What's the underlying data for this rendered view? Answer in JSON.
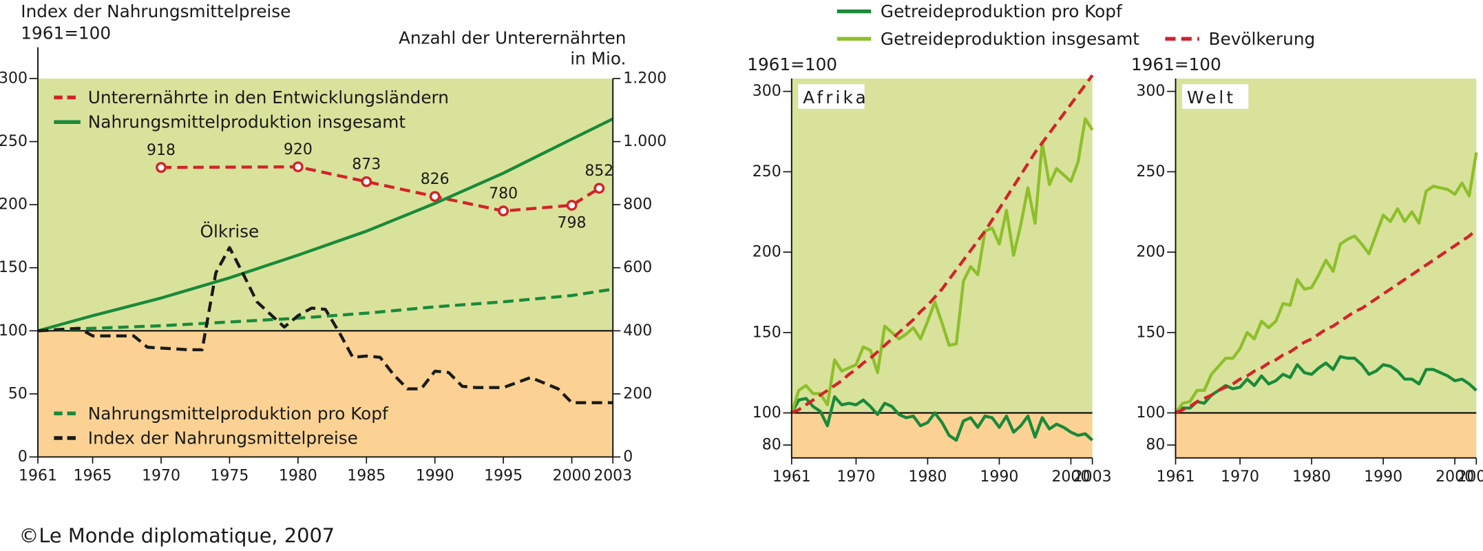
{
  "source": "©Le Monde diplomatique, 2007",
  "chart_data": [
    {
      "type": "line",
      "ylabel": [
        "Index der Nahrungsmittelpreise",
        "1961=100"
      ],
      "y2label": [
        "Anzahl der Unterernährten",
        "in Mio."
      ],
      "xlim": [
        1961,
        2003
      ],
      "xticks": [
        1961,
        1965,
        1970,
        1975,
        1980,
        1985,
        1990,
        1995,
        2000,
        2003
      ],
      "ylim": [
        0,
        300
      ],
      "yticks": [
        0,
        50,
        100,
        150,
        200,
        250,
        300
      ],
      "y2lim": [
        0,
        1200
      ],
      "y2ticks": [
        0,
        200,
        400,
        600,
        800,
        {
          "value": 1000,
          "label": "1.000"
        },
        {
          "value": 1200,
          "label": "1.200"
        }
      ],
      "baseline": 100,
      "annotations": [
        "Ölkrise"
      ],
      "series": [
        {
          "name": "Unterernährte in den Entwicklungsländern",
          "color": "#d2232a",
          "dashed": true,
          "markers": true,
          "axis": "y2",
          "legend": "upper left",
          "x": [
            1970,
            1980,
            1985,
            1990,
            1995,
            2000,
            2002
          ],
          "values": [
            918,
            920,
            873,
            826,
            780,
            798,
            852
          ]
        },
        {
          "name": "Nahrungsmittelproduktion insgesamt",
          "color": "#1a8a3a",
          "legend": "upper left",
          "x": [
            1961,
            1965,
            1970,
            1975,
            1980,
            1985,
            1990,
            1995,
            2000,
            2003
          ],
          "values": [
            100,
            112,
            126,
            142,
            160,
            179,
            201,
            225,
            252,
            268
          ]
        },
        {
          "name": "Nahrungsmittelproduktion pro Kopf",
          "color": "#1a8a3a",
          "dashed": true,
          "legend": "lower left",
          "x": [
            1961,
            1965,
            1970,
            1975,
            1980,
            1985,
            1990,
            1995,
            2000,
            2003
          ],
          "values": [
            100,
            102,
            104,
            107,
            110,
            114,
            119,
            123,
            128,
            133
          ]
        },
        {
          "name": "Index der Nahrungsmittelpreise",
          "color": "#1a1a1a",
          "dashed": true,
          "legend": "lower left",
          "x": [
            1961,
            1964,
            1965,
            1968,
            1969,
            1972,
            1973,
            1974,
            1975,
            1976,
            1977,
            1979,
            1980,
            1981,
            1982,
            1983,
            1984,
            1985,
            1986,
            1987,
            1988,
            1989,
            1990,
            1991,
            1992,
            1993,
            1994,
            1995,
            1997,
            1999,
            2000,
            2003
          ],
          "values": [
            100,
            102,
            96,
            96,
            87,
            85,
            85,
            146,
            166,
            145,
            123,
            103,
            112,
            118,
            117,
            99,
            79,
            80,
            79,
            65,
            54,
            54,
            68,
            67,
            56,
            55,
            55,
            55,
            63,
            54,
            43,
            43
          ]
        }
      ]
    },
    {
      "type": "line",
      "title": "Afrika",
      "ylabel": "1961=100",
      "legend": "top",
      "xlim": [
        1961,
        2003
      ],
      "xticks": [
        1961,
        1970,
        1980,
        1990,
        2000,
        2003
      ],
      "ylim": [
        72,
        308
      ],
      "yticks": [
        80,
        100,
        150,
        200,
        250,
        300
      ],
      "baseline": 100,
      "x": [
        1961,
        1962,
        1963,
        1964,
        1965,
        1966,
        1967,
        1968,
        1969,
        1970,
        1971,
        1972,
        1973,
        1974,
        1975,
        1976,
        1977,
        1978,
        1979,
        1980,
        1981,
        1982,
        1983,
        1984,
        1985,
        1986,
        1987,
        1988,
        1989,
        1990,
        1991,
        1992,
        1993,
        1994,
        1995,
        1996,
        1997,
        1998,
        1999,
        2000,
        2001,
        2002,
        2003
      ],
      "series": [
        {
          "name": "Getreideproduktion pro Kopf",
          "color": "#1a8a3a",
          "values": [
            100,
            108,
            109,
            104,
            101,
            92,
            110,
            105,
            106,
            105,
            108,
            104,
            99,
            106,
            104,
            99,
            97,
            98,
            92,
            94,
            100,
            94,
            86,
            83,
            95,
            97,
            91,
            98,
            97,
            91,
            98,
            88,
            92,
            98,
            85,
            97,
            90,
            93,
            91,
            88,
            86,
            87,
            83
          ]
        },
        {
          "name": "Getreideproduktion insgesamt",
          "color": "#8dbf2b",
          "values": [
            100,
            114,
            117,
            112,
            112,
            105,
            133,
            126,
            128,
            130,
            141,
            139,
            125,
            154,
            150,
            146,
            149,
            153,
            146,
            157,
            169,
            156,
            142,
            143,
            182,
            191,
            186,
            213,
            215,
            205,
            226,
            198,
            217,
            240,
            218,
            268,
            242,
            252,
            248,
            244,
            256,
            283,
            276
          ]
        },
        {
          "name": "Bevölkerung",
          "color": "#d2232a",
          "dashed": true,
          "values": [
            100,
            102,
            105,
            108,
            111,
            114,
            117,
            120,
            124,
            127,
            131,
            134,
            138,
            142,
            146,
            150,
            154,
            158,
            163,
            167,
            172,
            177,
            183,
            189,
            195,
            201,
            207,
            213,
            220,
            227,
            234,
            241,
            248,
            255,
            262,
            268,
            274,
            280,
            286,
            292,
            298,
            304,
            310
          ]
        }
      ]
    },
    {
      "type": "line",
      "title": "Welt",
      "ylabel": "1961=100",
      "xlim": [
        1961,
        2003
      ],
      "xticks": [
        1961,
        1970,
        1980,
        1990,
        2000,
        2003
      ],
      "ylim": [
        72,
        308
      ],
      "yticks": [
        80,
        100,
        150,
        200,
        250,
        300
      ],
      "baseline": 100,
      "x": [
        1961,
        1962,
        1963,
        1964,
        1965,
        1966,
        1967,
        1968,
        1969,
        1970,
        1971,
        1972,
        1973,
        1974,
        1975,
        1976,
        1977,
        1978,
        1979,
        1980,
        1981,
        1982,
        1983,
        1984,
        1985,
        1986,
        1987,
        1988,
        1989,
        1990,
        1991,
        1992,
        1993,
        1994,
        1995,
        1996,
        1997,
        1998,
        1999,
        2000,
        2001,
        2002,
        2003
      ],
      "series": [
        {
          "color": "#1a8a3a",
          "values": [
            100,
            103,
            103,
            107,
            106,
            111,
            114,
            117,
            115,
            116,
            121,
            117,
            123,
            118,
            120,
            124,
            122,
            130,
            125,
            124,
            128,
            131,
            127,
            135,
            134,
            134,
            130,
            124,
            126,
            130,
            129,
            126,
            121,
            121,
            118,
            127,
            127,
            125,
            123,
            120,
            121,
            118,
            114
          ]
        },
        {
          "color": "#8dbf2b",
          "values": [
            100,
            106,
            107,
            114,
            114,
            124,
            129,
            134,
            134,
            140,
            150,
            146,
            157,
            153,
            157,
            168,
            167,
            183,
            177,
            178,
            186,
            195,
            188,
            205,
            208,
            210,
            205,
            199,
            211,
            223,
            219,
            227,
            219,
            225,
            218,
            238,
            241,
            240,
            239,
            236,
            243,
            235,
            262
          ]
        },
        {
          "color": "#d2232a",
          "dashed": true,
          "values": [
            100,
            102,
            104,
            107,
            109,
            111,
            114,
            116,
            118,
            121,
            123,
            126,
            128,
            131,
            133,
            136,
            138,
            141,
            144,
            146,
            149,
            152,
            154,
            157,
            160,
            163,
            165,
            168,
            171,
            174,
            177,
            180,
            183,
            186,
            189,
            192,
            195,
            198,
            201,
            204,
            207,
            210,
            214
          ]
        }
      ]
    }
  ]
}
